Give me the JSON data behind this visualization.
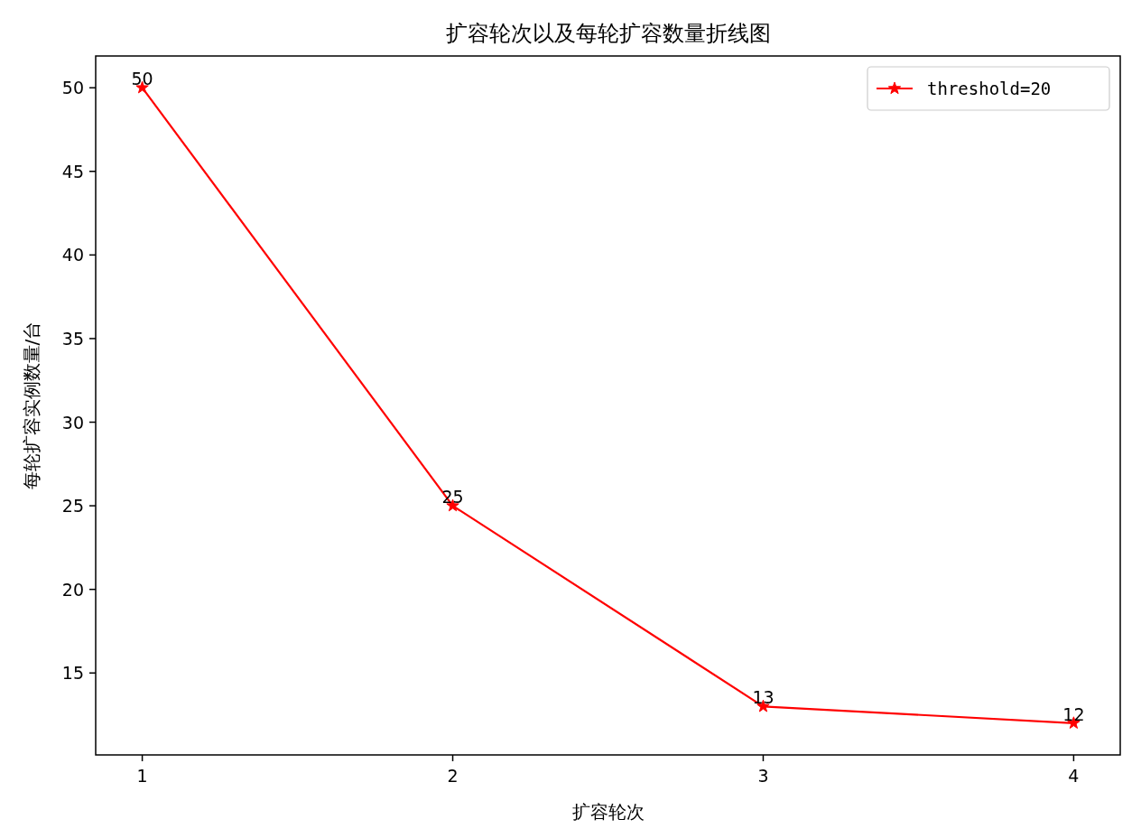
{
  "chart_data": {
    "type": "line",
    "title": "扩容轮次以及每轮扩容数量折线图",
    "xlabel": "扩容轮次",
    "ylabel": "每轮扩容实例数量/台",
    "x": [
      1,
      2,
      3,
      4
    ],
    "series": [
      {
        "name": "threshold=20",
        "color": "#ff0000",
        "values": [
          50,
          25,
          13,
          12
        ]
      }
    ],
    "xlim": [
      0.85,
      4.15
    ],
    "ylim": [
      10.1,
      51.9
    ],
    "xticks": [
      1,
      2,
      3,
      4
    ],
    "yticks": [
      15,
      20,
      25,
      30,
      35,
      40,
      45,
      50
    ],
    "data_labels": true,
    "legend": "top right",
    "marker": "star",
    "line_style": "solid",
    "grid": false
  }
}
